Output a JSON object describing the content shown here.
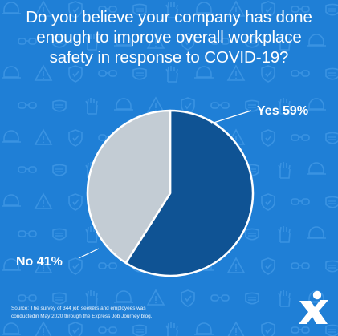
{
  "colors": {
    "background": "#1f7fd6",
    "pattern_icon": "#3a93e2",
    "yes_slice": "#0f5394",
    "no_slice": "#c3ccd4",
    "slice_border": "#ffffff",
    "text": "#ffffff"
  },
  "title_lines": [
    "Do you believe your company has done",
    "enough to improve overall workplace",
    "safety in response to COVID-19?"
  ],
  "chart_data": {
    "type": "pie",
    "title": "Do you believe your company has done enough to improve overall workplace safety in response to COVID-19?",
    "categories": [
      "Yes",
      "No"
    ],
    "values": [
      59,
      41
    ],
    "unit": "%",
    "data_labels": [
      "Yes 59%",
      "No 41%"
    ]
  },
  "source_lines": [
    "Source: The survey of 344 job seekers and employees was",
    "conductedin May 2020 through the Express Job Journey blog."
  ],
  "logo_icon": "express-x-logo-icon",
  "background_icons": [
    "hard-hat-icon",
    "warning-sign-icon",
    "shield-icon",
    "safety-glasses-icon",
    "face-mask-icon",
    "gloves-icon"
  ]
}
